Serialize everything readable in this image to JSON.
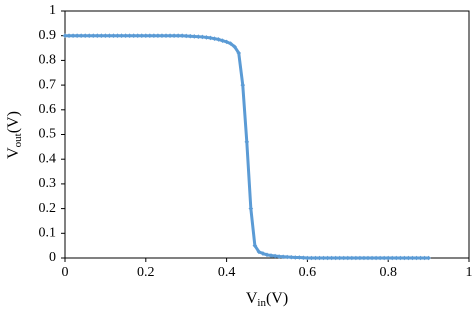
{
  "chart_data": {
    "type": "line",
    "xlabel": {
      "main": "V",
      "sub": "in",
      "unit": "(V)"
    },
    "ylabel": {
      "main": "V",
      "sub": "out",
      "unit": "(V)"
    },
    "x": [
      0,
      0.01,
      0.02,
      0.03,
      0.04,
      0.05,
      0.06,
      0.07,
      0.08,
      0.09,
      0.1,
      0.11,
      0.12,
      0.13,
      0.14,
      0.15,
      0.16,
      0.17,
      0.18,
      0.19,
      0.2,
      0.21,
      0.22,
      0.23,
      0.24,
      0.25,
      0.26,
      0.27,
      0.28,
      0.29,
      0.3,
      0.31,
      0.32,
      0.33,
      0.34,
      0.35,
      0.36,
      0.37,
      0.38,
      0.39,
      0.4,
      0.41,
      0.42,
      0.43,
      0.44,
      0.45,
      0.46,
      0.47,
      0.48,
      0.49,
      0.5,
      0.51,
      0.52,
      0.53,
      0.54,
      0.55,
      0.56,
      0.57,
      0.58,
      0.59,
      0.6,
      0.61,
      0.62,
      0.63,
      0.64,
      0.65,
      0.66,
      0.67,
      0.68,
      0.69,
      0.7,
      0.71,
      0.72,
      0.73,
      0.74,
      0.75,
      0.76,
      0.77,
      0.78,
      0.79,
      0.8,
      0.81,
      0.82,
      0.83,
      0.84,
      0.85,
      0.86,
      0.87,
      0.88,
      0.89,
      0.9
    ],
    "values": [
      0.9,
      0.9,
      0.9,
      0.9,
      0.9,
      0.9,
      0.9,
      0.9,
      0.9,
      0.9,
      0.9,
      0.9,
      0.9,
      0.9,
      0.9,
      0.9,
      0.9,
      0.9,
      0.9,
      0.9,
      0.9,
      0.9,
      0.9,
      0.9,
      0.9,
      0.9,
      0.9,
      0.9,
      0.9,
      0.9,
      0.899,
      0.898,
      0.897,
      0.896,
      0.895,
      0.893,
      0.891,
      0.888,
      0.885,
      0.88,
      0.875,
      0.868,
      0.855,
      0.83,
      0.7,
      0.47,
      0.2,
      0.05,
      0.025,
      0.018,
      0.013,
      0.01,
      0.008,
      0.006,
      0.005,
      0.004,
      0.003,
      0.002,
      0.002,
      0.001,
      0,
      0,
      0,
      0,
      0,
      0,
      0,
      0,
      0,
      0,
      0,
      0,
      0,
      0,
      0,
      0,
      0,
      0,
      0,
      0,
      0,
      0,
      0,
      0,
      0,
      0,
      0,
      0,
      0,
      0,
      0
    ],
    "color": "#5b9bd5",
    "xlim": [
      0,
      1
    ],
    "xticks": [
      0,
      0.2,
      0.4,
      0.6,
      0.8,
      1
    ],
    "ylim": [
      0,
      1
    ],
    "yticks": [
      0,
      0.1,
      0.2,
      0.3,
      0.4,
      0.5,
      0.6,
      0.7,
      0.8,
      0.9,
      1
    ],
    "grid": false
  }
}
